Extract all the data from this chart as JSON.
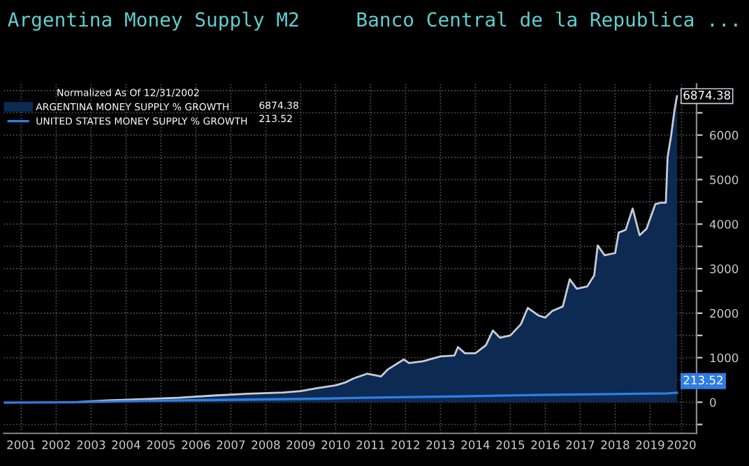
{
  "chart_data": {
    "type": "area",
    "title": "Argentina Money Supply M2",
    "subtitle": "Banco Central de la Republica ...",
    "legend_title": "Normalized As Of 12/31/2002",
    "series": [
      {
        "name": "ARGENTINA MONEY SUPPLY % GROWTH",
        "color": "#0c2a52",
        "x": [
          2003.0,
          2004.0,
          2005.0,
          2006.0,
          2007.0,
          2008.0,
          2009.0,
          2009.5,
          2010.0,
          2010.5,
          2010.8,
          2011.0,
          2011.4,
          2011.8,
          2012.0,
          2012.45,
          2012.6,
          2013.0,
          2013.5,
          2013.9,
          2014.0,
          2014.2,
          2014.5,
          2014.8,
          2015.0,
          2015.2,
          2015.5,
          2015.8,
          2016.0,
          2016.3,
          2016.5,
          2016.7,
          2017.0,
          2017.2,
          2017.4,
          2017.7,
          2017.9,
          2018.0,
          2018.2,
          2018.5,
          2018.6,
          2018.8,
          2019.0,
          2019.2,
          2019.4,
          2019.65,
          2019.8,
          2019.95,
          2020.0,
          2020.1,
          2020.2,
          2020.27
        ],
        "values": [
          0,
          40,
          70,
          100,
          150,
          190,
          220,
          250,
          320,
          380,
          450,
          530,
          640,
          580,
          740,
          960,
          880,
          920,
          1030,
          1050,
          1240,
          1100,
          1100,
          1280,
          1610,
          1450,
          1500,
          1750,
          2120,
          1950,
          1900,
          2050,
          2150,
          2760,
          2550,
          2600,
          2850,
          3520,
          3300,
          3350,
          3810,
          3870,
          4350,
          3750,
          3900,
          4450,
          4480,
          4480,
          5500,
          5980,
          6570,
          6874.38
        ],
        "value_labels": [
          null,
          null,
          null,
          null,
          null,
          null,
          null,
          null,
          null,
          null,
          null,
          null,
          null,
          null,
          null,
          null,
          null,
          null,
          null,
          null,
          null,
          null,
          null,
          null,
          null,
          null,
          null,
          null,
          null,
          null,
          null,
          null,
          null,
          null,
          null,
          null,
          null,
          null,
          null,
          null,
          null,
          null,
          null,
          null,
          null,
          null,
          null,
          null,
          null,
          null,
          null,
          "6874.38"
        ]
      },
      {
        "name": "UNITED STATES MONEY SUPPLY % GROWTH",
        "type": "line",
        "color": "#2f7de1",
        "x": [
          2001.0,
          2003.0,
          2005.0,
          2008.0,
          2010.0,
          2012.0,
          2014.0,
          2016.0,
          2018.0,
          2020.0,
          2020.27
        ],
        "values": [
          -10,
          0,
          30,
          60,
          80,
          110,
          130,
          160,
          180,
          200,
          213.52
        ],
        "value_labels": [
          null,
          null,
          null,
          null,
          null,
          null,
          null,
          null,
          null,
          null,
          "213.52"
        ]
      }
    ],
    "xlim": [
      2001.0,
      2020.83
    ],
    "xticks": [
      {
        "value": 2001.5,
        "label": "2001"
      },
      {
        "value": 2002.5,
        "label": "2002"
      },
      {
        "value": 2003.5,
        "label": "2003"
      },
      {
        "value": 2004.5,
        "label": "2004"
      },
      {
        "value": 2005.5,
        "label": "2005"
      },
      {
        "value": 2006.5,
        "label": "2006"
      },
      {
        "value": 2007.5,
        "label": "2007"
      },
      {
        "value": 2008.5,
        "label": "2008"
      },
      {
        "value": 2009.5,
        "label": "2009"
      },
      {
        "value": 2010.5,
        "label": "2010"
      },
      {
        "value": 2011.5,
        "label": "2011"
      },
      {
        "value": 2012.5,
        "label": "2012"
      },
      {
        "value": 2013.5,
        "label": "2013"
      },
      {
        "value": 2014.5,
        "label": "2014"
      },
      {
        "value": 2015.5,
        "label": "2015"
      },
      {
        "value": 2016.5,
        "label": "2016"
      },
      {
        "value": 2017.5,
        "label": "2017"
      },
      {
        "value": 2018.5,
        "label": "2018"
      },
      {
        "value": 2019.5,
        "label": "2019"
      },
      {
        "value": 2020.4,
        "label": "2020"
      }
    ],
    "ylim": [
      -700,
      7150
    ],
    "yticks": [
      {
        "value": -500,
        "label": null
      },
      0,
      {
        "value": 500,
        "label": null
      },
      1000,
      {
        "value": 1500,
        "label": null
      },
      2000,
      {
        "value": 2500,
        "label": null
      },
      3000,
      {
        "value": 3500,
        "label": null
      },
      4000,
      {
        "value": 4500,
        "label": null
      },
      5000,
      {
        "value": 5500,
        "label": null
      },
      6000,
      {
        "value": 6500,
        "label": null
      },
      {
        "value": 7000,
        "label": null
      }
    ],
    "grid": true,
    "legend": "top left"
  }
}
